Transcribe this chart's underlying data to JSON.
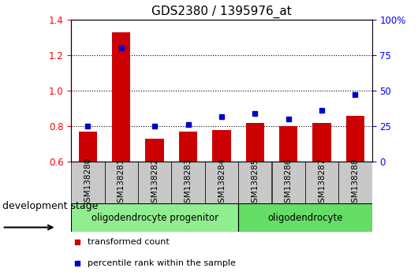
{
  "title": "GDS2380 / 1395976_at",
  "samples": [
    "GSM138280",
    "GSM138281",
    "GSM138282",
    "GSM138283",
    "GSM138284",
    "GSM138285",
    "GSM138286",
    "GSM138287",
    "GSM138288"
  ],
  "transformed_count": [
    0.77,
    1.33,
    0.73,
    0.77,
    0.78,
    0.82,
    0.8,
    0.82,
    0.86
  ],
  "percentile_rank": [
    25,
    80,
    25,
    26,
    32,
    34,
    30,
    36,
    47
  ],
  "ylim_left": [
    0.6,
    1.4
  ],
  "ylim_right": [
    0,
    100
  ],
  "yticks_left": [
    0.6,
    0.8,
    1.0,
    1.2,
    1.4
  ],
  "yticks_right": [
    0,
    25,
    50,
    75,
    100
  ],
  "ytick_labels_right": [
    "0",
    "25",
    "50",
    "75",
    "100%"
  ],
  "bar_color": "#CC0000",
  "dot_color": "#0000CC",
  "background_color": "#ffffff",
  "groups": [
    {
      "label": "oligodendrocyte progenitor",
      "indices": [
        0,
        1,
        2,
        3,
        4
      ],
      "color": "#90EE90"
    },
    {
      "label": "oligodendrocyte",
      "indices": [
        5,
        6,
        7,
        8
      ],
      "color": "#66DD66"
    }
  ],
  "dev_stage_label": "development stage",
  "legend_items": [
    {
      "label": "transformed count",
      "color": "#CC0000"
    },
    {
      "label": "percentile rank within the sample",
      "color": "#0000CC"
    }
  ],
  "bar_width": 0.55,
  "title_fontsize": 11,
  "tick_fontsize": 8.5,
  "sample_label_fontsize": 7.5,
  "group_label_fontsize": 8.5,
  "legend_fontsize": 8,
  "dev_stage_fontsize": 9
}
